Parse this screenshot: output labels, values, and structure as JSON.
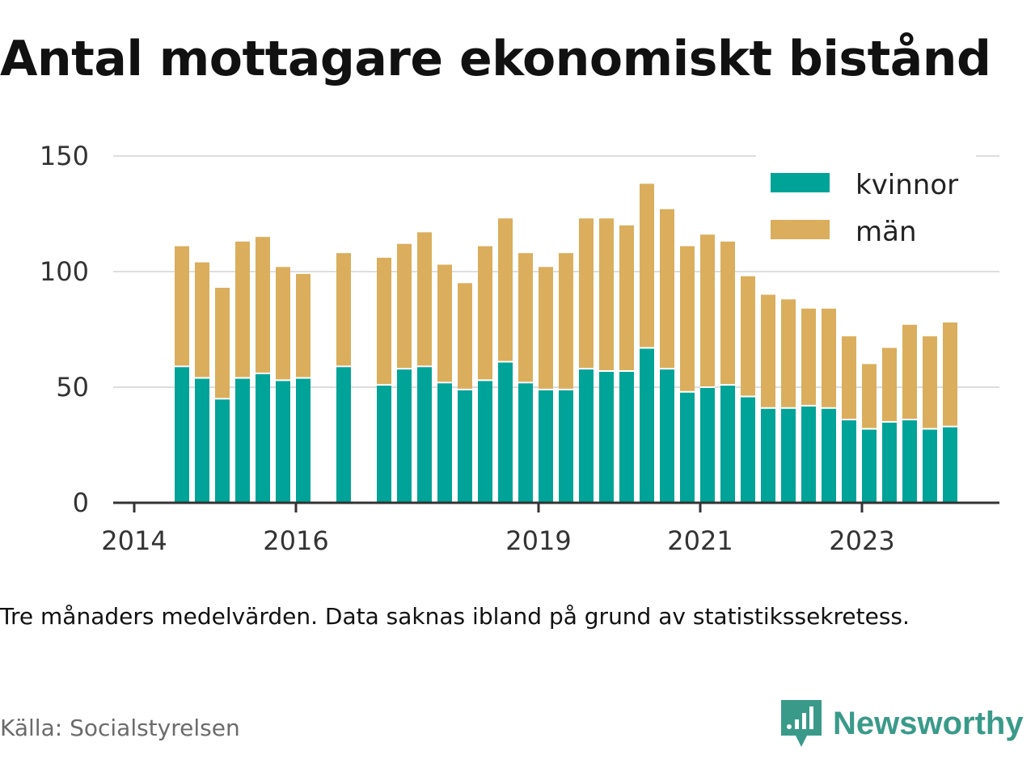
{
  "title": "Antal mottagare ekonomiskt bistånd",
  "note": "Tre månaders medelvärden. Data saknas ibland på grund av statistikssekretess.",
  "source": "Källa: Socialstyrelsen",
  "brand": "Newsworthy",
  "colors": {
    "kvinnor": "#00a398",
    "man": "#daae5c",
    "grid": "#dddddd",
    "axis": "#333333",
    "brand": "#3a9a8a"
  },
  "chart_data": {
    "type": "bar",
    "stacked": true,
    "title": "Antal mottagare ekonomiskt bistånd",
    "xlabel": "",
    "ylabel": "",
    "ylim": [
      0,
      150
    ],
    "yticks": [
      0,
      50,
      100,
      150
    ],
    "x_tick_labels": [
      "2014",
      "2016",
      "2019",
      "2021",
      "2023"
    ],
    "legend": {
      "placement": "top-right",
      "entries": [
        "kvinnor",
        "män"
      ]
    },
    "categories": [
      "2014-Q2",
      "2014-Q3",
      "2014-Q4",
      "2015-Q1",
      "2015-Q2",
      "2015-Q3",
      "2015-Q4",
      "2016-Q1",
      "2016-Q2",
      "2016-Q3",
      "2016-Q4",
      "2017-Q1",
      "2017-Q2",
      "2017-Q3",
      "2017-Q4",
      "2018-Q1",
      "2018-Q2",
      "2018-Q3",
      "2018-Q4",
      "2019-Q1",
      "2019-Q2",
      "2019-Q3",
      "2019-Q4",
      "2020-Q1",
      "2020-Q2",
      "2020-Q3",
      "2020-Q4",
      "2021-Q1",
      "2021-Q2",
      "2021-Q3",
      "2021-Q4",
      "2022-Q1",
      "2022-Q2",
      "2022-Q3",
      "2022-Q4",
      "2023-Q1",
      "2023-Q2",
      "2023-Q3",
      "2023-Q4"
    ],
    "series": [
      {
        "name": "kvinnor",
        "values": [
          59,
          54,
          45,
          54,
          56,
          53,
          54,
          null,
          59,
          null,
          51,
          58,
          59,
          52,
          49,
          53,
          61,
          52,
          49,
          49,
          58,
          57,
          57,
          67,
          58,
          48,
          50,
          51,
          46,
          41,
          41,
          42,
          41,
          36,
          32,
          35,
          36,
          32,
          33
        ]
      },
      {
        "name": "män",
        "values": [
          52,
          50,
          48,
          59,
          59,
          49,
          45,
          null,
          49,
          null,
          55,
          54,
          58,
          51,
          46,
          58,
          62,
          56,
          53,
          59,
          65,
          66,
          63,
          71,
          69,
          63,
          66,
          62,
          52,
          49,
          47,
          42,
          43,
          36,
          28,
          32,
          41,
          40,
          45
        ]
      }
    ]
  }
}
